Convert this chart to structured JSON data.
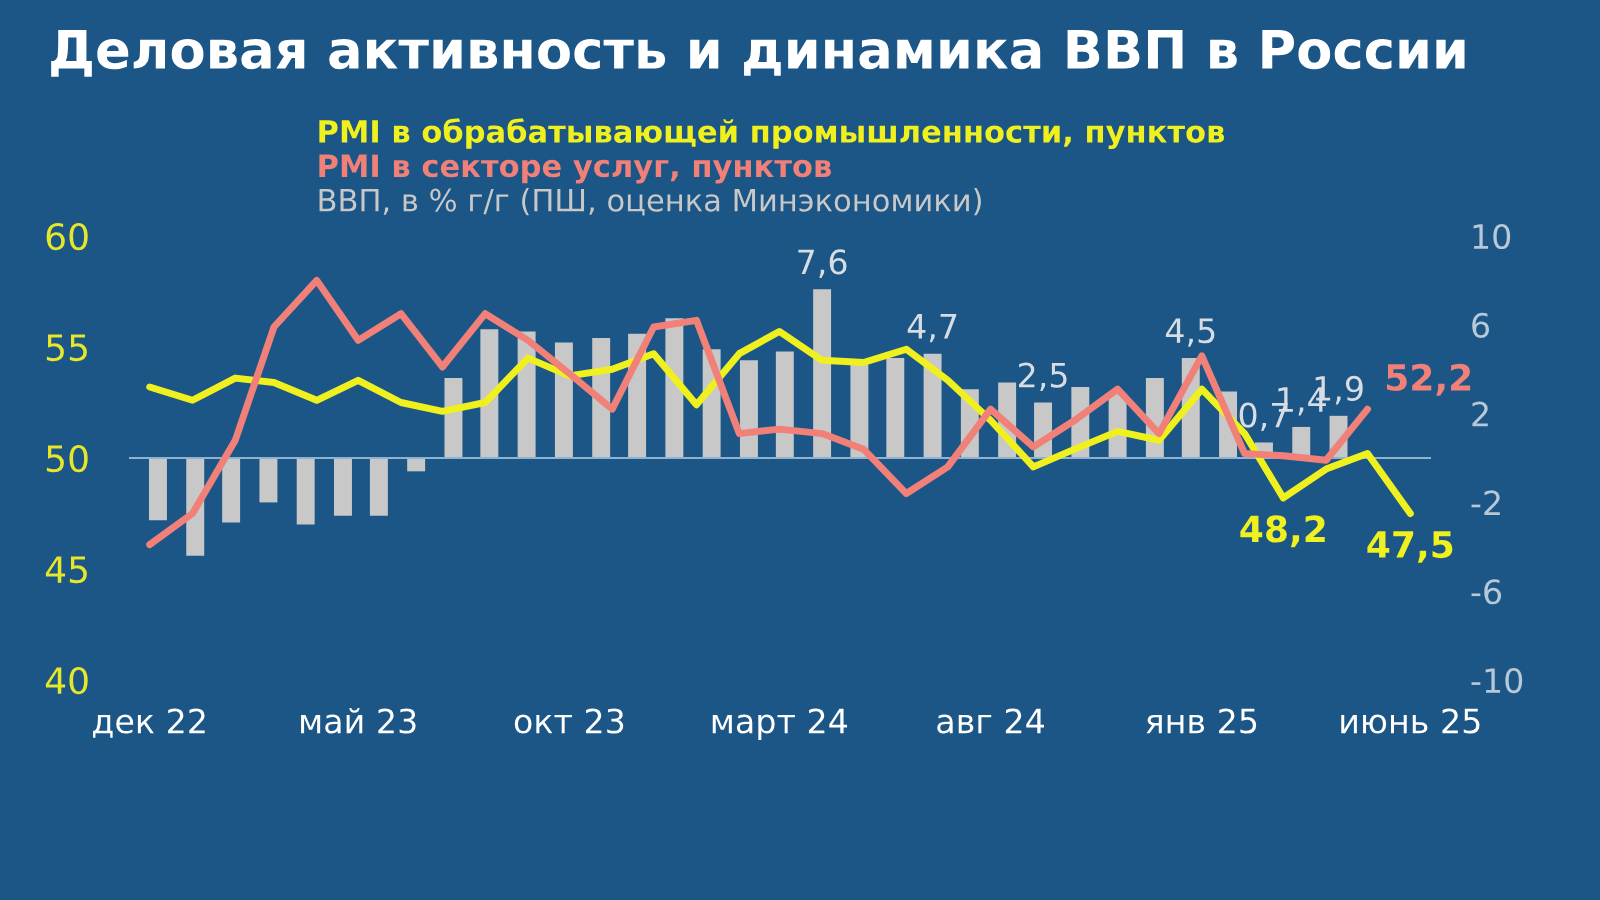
{
  "chart_data": {
    "type": "line",
    "title": "Деловая активность и динамика ВВП в России",
    "xlim": [
      "2022-11-16",
      "2025-06-16"
    ],
    "xticks": [
      {
        "value": "2022-12",
        "label": "дек 22"
      },
      {
        "value": "2023-05",
        "label": "май 23"
      },
      {
        "value": "2023-10",
        "label": "окт 23"
      },
      {
        "value": "2024-03",
        "label": "март 24"
      },
      {
        "value": "2024-08",
        "label": "авг 24"
      },
      {
        "value": "2025-01",
        "label": "янв 25"
      },
      {
        "value": "2025-06",
        "label": "июнь 25"
      }
    ],
    "ylim": [
      40,
      60
    ],
    "yticks": [
      40,
      45,
      50,
      55,
      60
    ],
    "y2lim": [
      -10,
      10
    ],
    "y2ticks": [
      -10,
      -6,
      -2,
      2,
      6,
      10
    ],
    "legend": "top left",
    "ref_lines": [
      {
        "axis": "y",
        "value": 50,
        "color": "#8fb3cf"
      }
    ],
    "series": [
      {
        "name": "PMI в обрабатывающей промышленности, пунктов",
        "color": "#f0f01e",
        "x": [
          "2022-12",
          "2023-01",
          "2023-02",
          "2023-03",
          "2023-04",
          "2023-05",
          "2023-06",
          "2023-07",
          "2023-08",
          "2023-09",
          "2023-10",
          "2023-11",
          "2023-12",
          "2024-01",
          "2024-02",
          "2024-03",
          "2024-04",
          "2024-05",
          "2024-06",
          "2024-07",
          "2024-08",
          "2024-09",
          "2024-10",
          "2024-11",
          "2024-12",
          "2025-01",
          "2025-02",
          "2025-03",
          "2025-04",
          "2025-05",
          "2025-06"
        ],
        "values": [
          53.2,
          52.6,
          53.6,
          53.4,
          52.6,
          53.5,
          52.5,
          52.1,
          52.5,
          54.5,
          53.7,
          54.0,
          54.7,
          52.4,
          54.7,
          55.7,
          54.4,
          54.3,
          54.9,
          53.5,
          51.7,
          49.6,
          50.4,
          51.2,
          50.8,
          53.1,
          51.1,
          48.2,
          49.5,
          50.2,
          47.5
        ],
        "value_labels": [
          null,
          null,
          null,
          null,
          null,
          null,
          null,
          null,
          null,
          null,
          null,
          null,
          null,
          null,
          null,
          null,
          null,
          null,
          null,
          null,
          null,
          null,
          null,
          null,
          null,
          null,
          null,
          "48,2",
          null,
          null,
          "47,5"
        ]
      },
      {
        "name": "PMI в секторе услуг, пунктов",
        "color": "#f08078",
        "x": [
          "2022-12",
          "2023-01",
          "2023-02",
          "2023-03",
          "2023-04",
          "2023-05",
          "2023-06",
          "2023-07",
          "2023-08",
          "2023-09",
          "2023-10",
          "2023-11",
          "2023-12",
          "2024-01",
          "2024-02",
          "2024-03",
          "2024-04",
          "2024-05",
          "2024-06",
          "2024-07",
          "2024-08",
          "2024-09",
          "2024-10",
          "2024-11",
          "2024-12",
          "2025-01",
          "2025-02",
          "2025-03",
          "2025-04",
          "2025-05"
        ],
        "values": [
          46.1,
          47.5,
          50.8,
          55.9,
          58.0,
          55.3,
          56.5,
          54.1,
          56.5,
          55.3,
          53.8,
          52.2,
          55.9,
          56.2,
          51.1,
          51.3,
          51.1,
          50.4,
          48.4,
          49.6,
          52.2,
          50.5,
          51.7,
          53.1,
          51.1,
          54.6,
          50.2,
          50.1,
          49.9,
          52.2
        ],
        "value_labels": [
          null,
          null,
          null,
          null,
          null,
          null,
          null,
          null,
          null,
          null,
          null,
          null,
          null,
          null,
          null,
          null,
          null,
          null,
          null,
          null,
          null,
          null,
          null,
          null,
          null,
          null,
          null,
          null,
          null,
          "52,2"
        ]
      },
      {
        "name": "ВВП, в % г/г (ПШ, оценка Минэкономики)",
        "type": "bar",
        "axis": "y2",
        "color": "#c8c8c8",
        "x": [
          "2022-12-07",
          "2023-01-03",
          "2023-01-29",
          "2023-02-25",
          "2023-03-24",
          "2023-04-20",
          "2023-05-16",
          "2023-06-12",
          "2023-07-09",
          "2023-08-04",
          "2023-08-31",
          "2023-09-27",
          "2023-10-24",
          "2023-11-19",
          "2023-12-16",
          "2024-01-12",
          "2024-02-08",
          "2024-03-05",
          "2024-04-01",
          "2024-04-28",
          "2024-05-24",
          "2024-06-20",
          "2024-07-17",
          "2024-08-13",
          "2024-09-08",
          "2024-10-05",
          "2024-11-01",
          "2024-11-28",
          "2024-12-24",
          "2025-01-20",
          "2025-02-15",
          "2025-03-14",
          "2025-04-10"
        ],
        "values": [
          -2.8,
          -4.4,
          -2.9,
          -2.0,
          -3.0,
          -2.6,
          -2.6,
          -0.6,
          3.6,
          5.8,
          5.7,
          5.2,
          5.4,
          5.6,
          6.3,
          4.9,
          4.4,
          4.8,
          7.6,
          4.2,
          4.5,
          4.7,
          3.1,
          3.4,
          2.5,
          3.2,
          2.9,
          3.6,
          4.5,
          3.0,
          0.7,
          1.4,
          1.9
        ],
        "value_labels": [
          null,
          null,
          null,
          null,
          null,
          null,
          null,
          null,
          null,
          null,
          null,
          null,
          null,
          null,
          null,
          null,
          null,
          null,
          "7,6",
          null,
          null,
          "4,7",
          null,
          null,
          "2,5",
          null,
          null,
          null,
          "4,5",
          null,
          "0,7",
          "1,4",
          "1,9"
        ]
      }
    ]
  }
}
